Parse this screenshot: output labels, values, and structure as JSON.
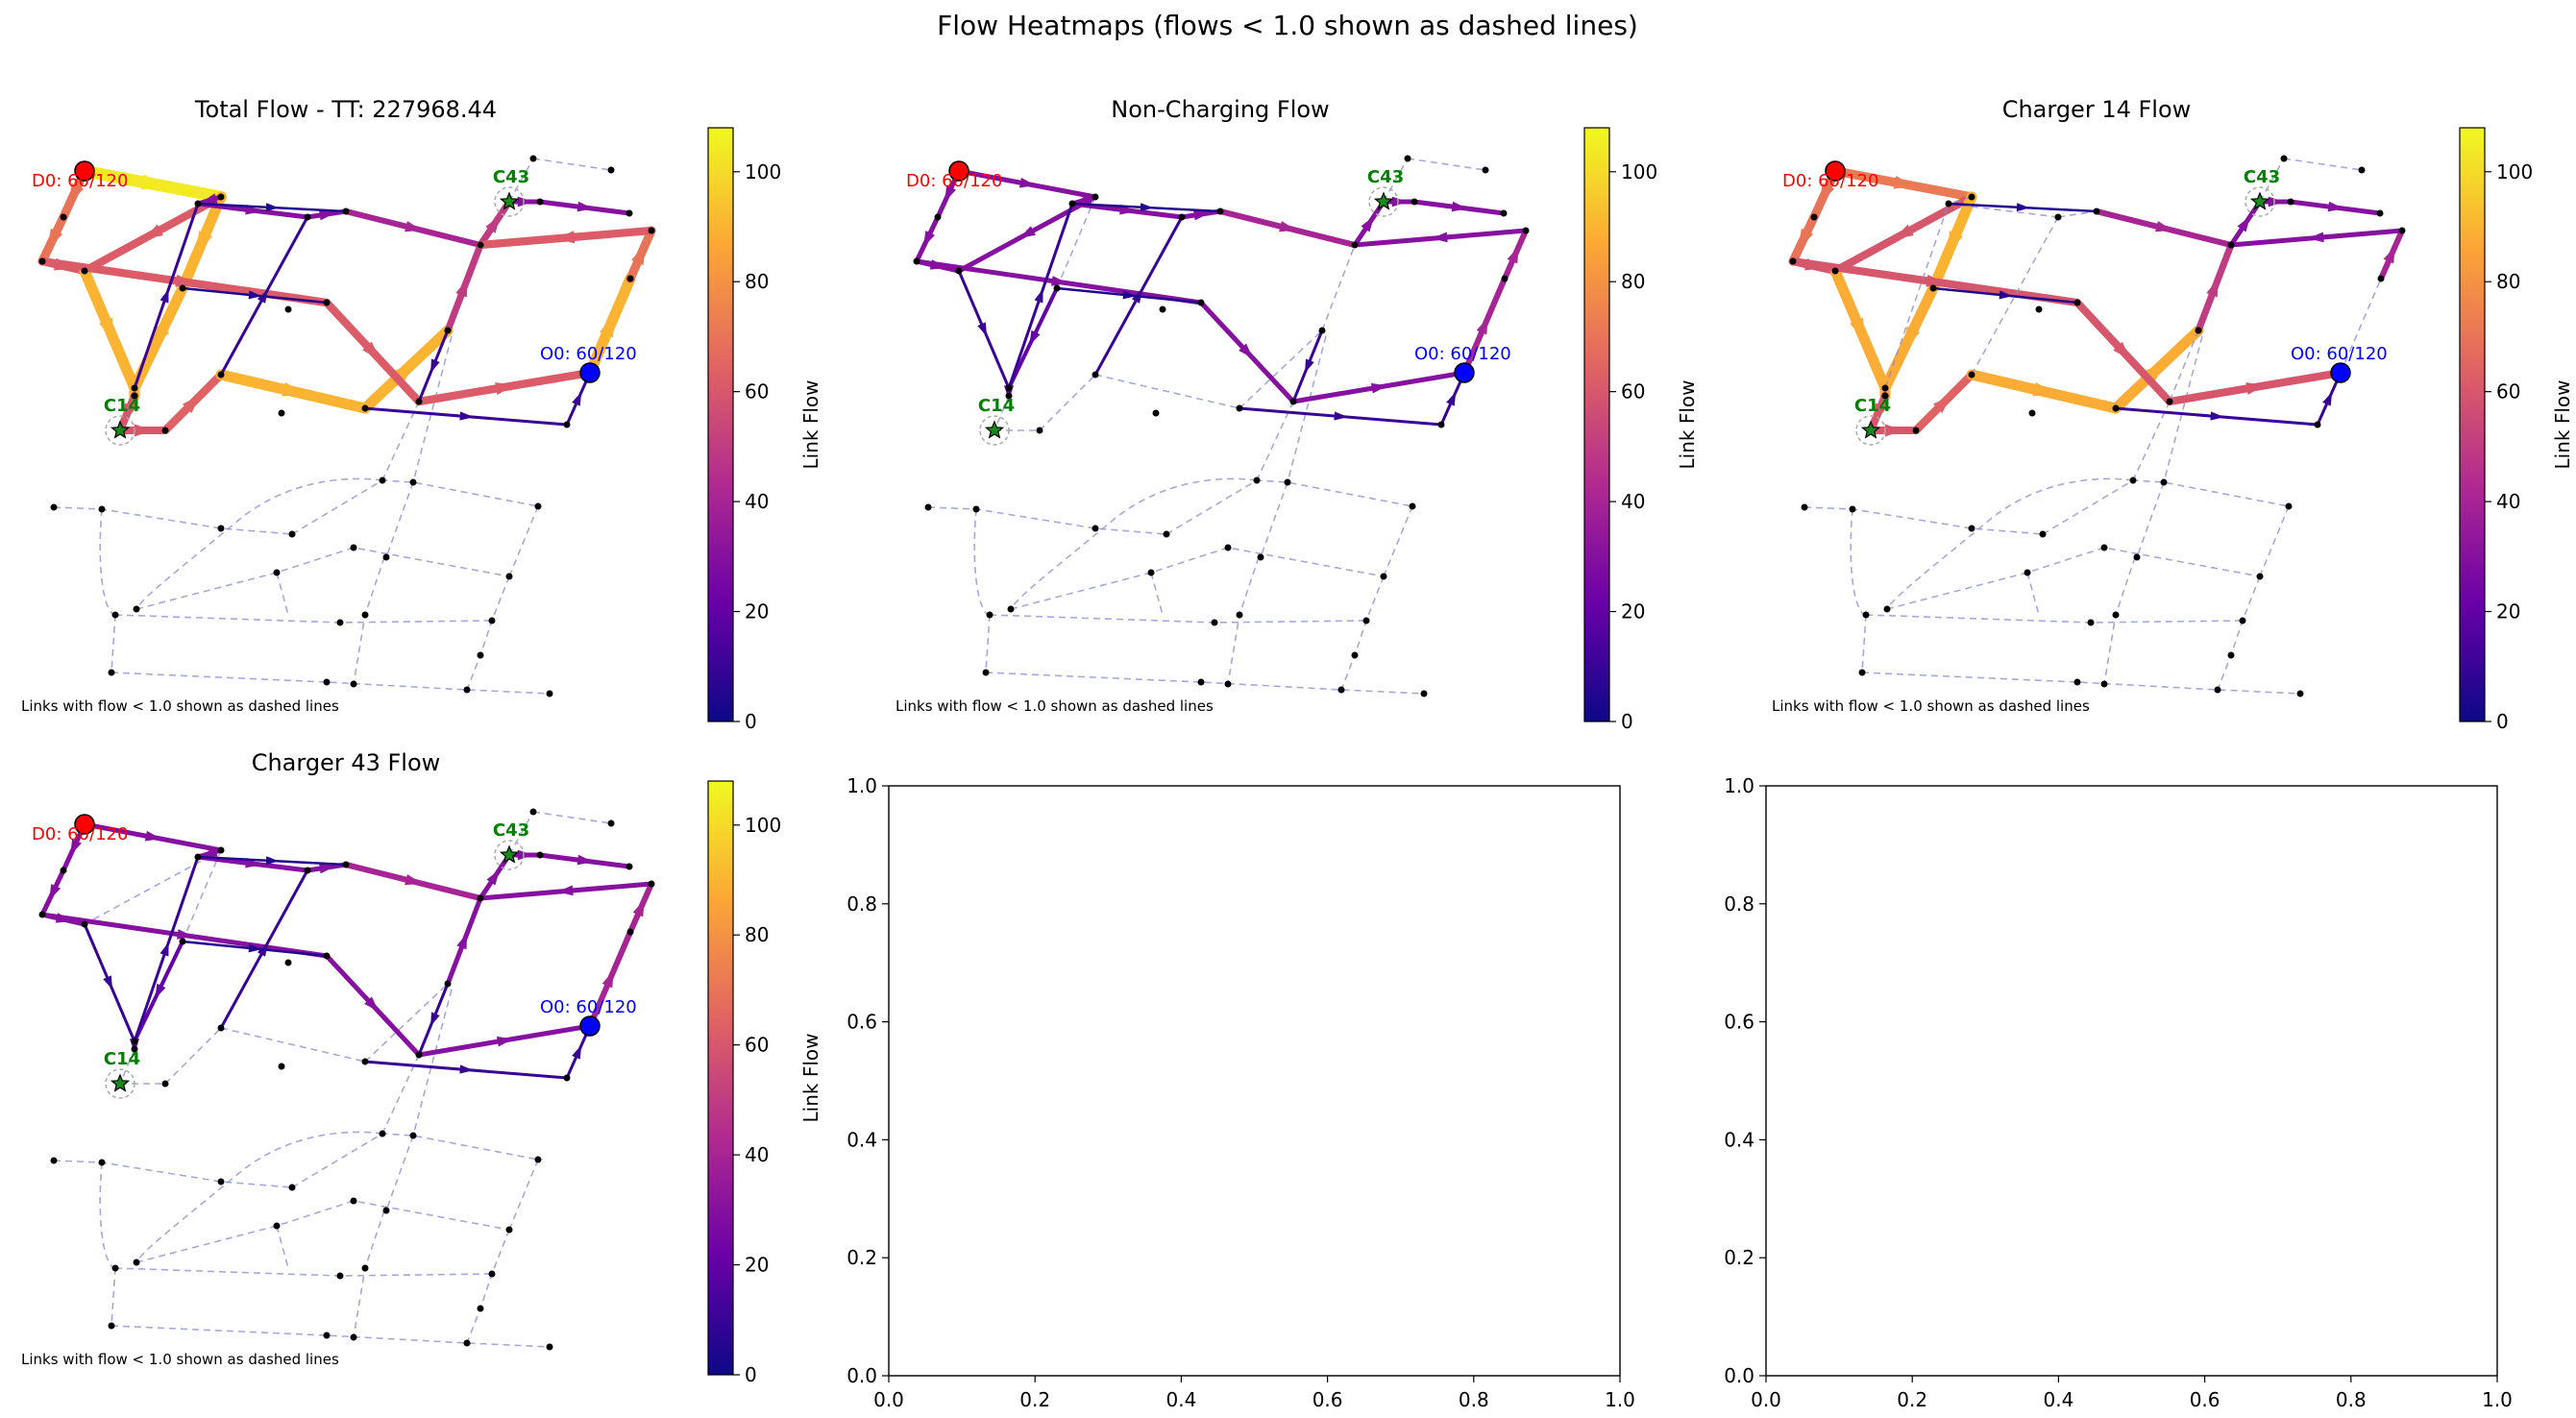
{
  "figure": {
    "suptitle": "Flow Heatmaps (flows < 1.0 shown as dashed lines)",
    "colorbar_label": "Link Flow",
    "footnote": "Links with flow < 1.0 shown as dashed lines",
    "colormap": [
      "#0d0887",
      "#6a00a8",
      "#b12a90",
      "#e16462",
      "#fca636",
      "#f0f921"
    ]
  },
  "chart_data": [
    {
      "type": "network-heatmap",
      "title": "Total Flow - TT: 227968.44",
      "colorbar": {
        "range": [
          0,
          108
        ],
        "ticks": [
          0,
          20,
          40,
          60,
          80,
          100
        ],
        "label": "Link Flow"
      },
      "markers": [
        {
          "label": "D0: 60/120",
          "kind": "destination",
          "color": "#ff0000"
        },
        {
          "label": "O0: 60/120",
          "kind": "origin",
          "color": "#0000ff"
        },
        {
          "label": "C43",
          "kind": "charger",
          "color": "#008000"
        },
        {
          "label": "C14",
          "kind": "charger",
          "color": "#008000"
        }
      ]
    },
    {
      "type": "network-heatmap",
      "title": "Non-Charging Flow",
      "colorbar": {
        "range": [
          0,
          108
        ],
        "ticks": [
          0,
          20,
          40,
          60,
          80,
          100
        ],
        "label": "Link Flow"
      },
      "markers": [
        {
          "label": "D0: 60/120",
          "kind": "destination",
          "color": "#ff0000"
        },
        {
          "label": "O0: 60/120",
          "kind": "origin",
          "color": "#0000ff"
        },
        {
          "label": "C43",
          "kind": "charger",
          "color": "#008000"
        },
        {
          "label": "C14",
          "kind": "charger",
          "color": "#008000"
        }
      ]
    },
    {
      "type": "network-heatmap",
      "title": "Charger 14 Flow",
      "colorbar": {
        "range": [
          0,
          108
        ],
        "ticks": [
          0,
          20,
          40,
          60,
          80,
          100
        ],
        "label": "Link Flow"
      },
      "markers": [
        {
          "label": "D0: 60/120",
          "kind": "destination",
          "color": "#ff0000"
        },
        {
          "label": "O0: 60/120",
          "kind": "origin",
          "color": "#0000ff"
        },
        {
          "label": "C43",
          "kind": "charger",
          "color": "#008000"
        },
        {
          "label": "C14",
          "kind": "charger",
          "color": "#008000"
        }
      ]
    },
    {
      "type": "network-heatmap",
      "title": "Charger 43 Flow",
      "colorbar": {
        "range": [
          0,
          108
        ],
        "ticks": [
          0,
          20,
          40,
          60,
          80,
          100
        ],
        "label": "Link Flow"
      },
      "markers": [
        {
          "label": "D0: 60/120",
          "kind": "destination",
          "color": "#ff0000"
        },
        {
          "label": "O0: 60/120",
          "kind": "origin",
          "color": "#0000ff"
        },
        {
          "label": "C43",
          "kind": "charger",
          "color": "#008000"
        },
        {
          "label": "C14",
          "kind": "charger",
          "color": "#008000"
        }
      ]
    },
    {
      "type": "empty-axes",
      "xlim": [
        0,
        1
      ],
      "ylim": [
        0,
        1
      ],
      "xticks": [
        0.0,
        0.2,
        0.4,
        0.6,
        0.8,
        1.0
      ],
      "yticks": [
        0.0,
        0.2,
        0.4,
        0.6,
        0.8,
        1.0
      ]
    },
    {
      "type": "empty-axes",
      "xlim": [
        0,
        1
      ],
      "ylim": [
        0,
        1
      ],
      "xticks": [
        0.0,
        0.2,
        0.4,
        0.6,
        0.8,
        1.0
      ],
      "yticks": [
        0.0,
        0.2,
        0.4,
        0.6,
        0.8,
        1.0
      ]
    }
  ]
}
